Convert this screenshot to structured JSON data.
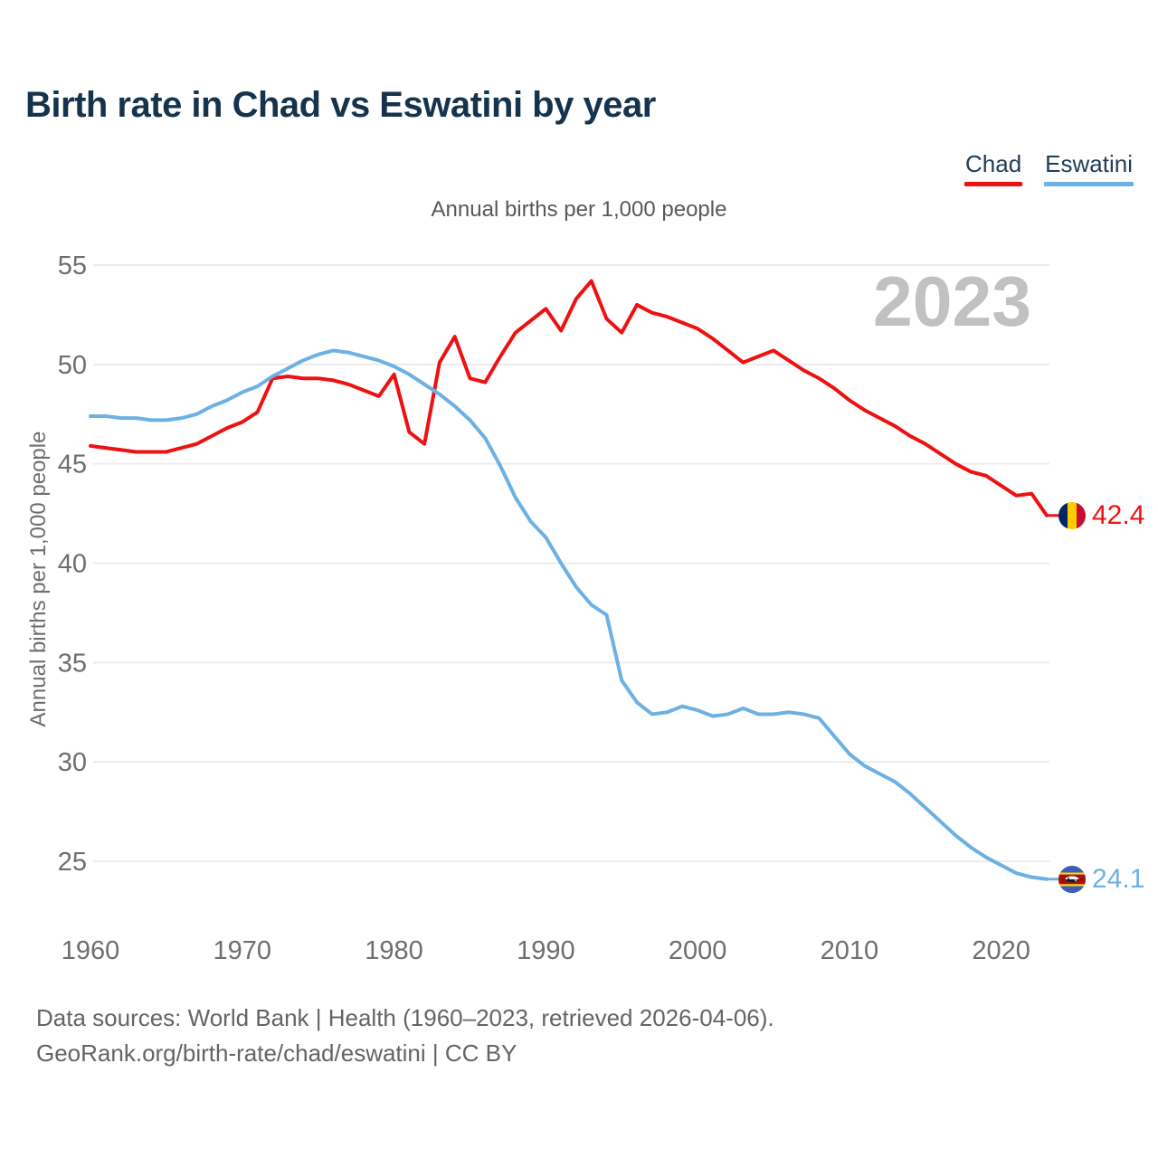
{
  "page": {
    "title": "Birth rate in Chad vs Eswatini by year"
  },
  "legend": {
    "items": [
      {
        "label": "Chad",
        "color": "#ee1111"
      },
      {
        "label": "Eswatini",
        "color": "#6cb0e4"
      }
    ]
  },
  "chart_data": {
    "type": "line",
    "title": "Annual births per 1,000 people",
    "xlabel": "",
    "ylabel": "Annual births per 1,000 people",
    "watermark": "2023",
    "grid": true,
    "legend_position": "top-right",
    "xlim": [
      1960,
      2023
    ],
    "ylim": [
      25,
      55
    ],
    "x_ticks": [
      1960,
      1970,
      1980,
      1990,
      2000,
      2010,
      2020
    ],
    "y_ticks": [
      25,
      30,
      35,
      40,
      45,
      50,
      55
    ],
    "x": [
      1960,
      1961,
      1962,
      1963,
      1964,
      1965,
      1966,
      1967,
      1968,
      1969,
      1970,
      1971,
      1972,
      1973,
      1974,
      1975,
      1976,
      1977,
      1978,
      1979,
      1980,
      1981,
      1982,
      1983,
      1984,
      1985,
      1986,
      1987,
      1988,
      1989,
      1990,
      1991,
      1992,
      1993,
      1994,
      1995,
      1996,
      1997,
      1998,
      1999,
      2000,
      2001,
      2002,
      2003,
      2004,
      2005,
      2006,
      2007,
      2008,
      2009,
      2010,
      2011,
      2012,
      2013,
      2014,
      2015,
      2016,
      2017,
      2018,
      2019,
      2020,
      2021,
      2022,
      2023
    ],
    "series": [
      {
        "name": "Chad",
        "color": "#ee1111",
        "end_label": "42.4",
        "flag": "chad",
        "values": [
          45.9,
          45.8,
          45.7,
          45.6,
          45.6,
          45.6,
          45.8,
          46.0,
          46.4,
          46.8,
          47.1,
          47.6,
          49.3,
          49.4,
          49.3,
          49.3,
          49.2,
          49.0,
          48.7,
          48.4,
          49.5,
          46.6,
          46.0,
          50.1,
          51.4,
          49.3,
          49.1,
          50.4,
          51.6,
          52.2,
          52.8,
          51.7,
          53.3,
          54.2,
          52.3,
          51.6,
          53.0,
          52.6,
          52.4,
          52.1,
          51.8,
          51.3,
          50.7,
          50.1,
          50.4,
          50.7,
          50.2,
          49.7,
          49.3,
          48.8,
          48.2,
          47.7,
          47.3,
          46.9,
          46.4,
          46.0,
          45.5,
          45.0,
          44.6,
          44.4,
          43.9,
          43.4,
          43.5,
          42.4
        ]
      },
      {
        "name": "Eswatini",
        "color": "#6cb0e4",
        "end_label": "24.1",
        "flag": "eswatini",
        "values": [
          47.4,
          47.4,
          47.3,
          47.3,
          47.2,
          47.2,
          47.3,
          47.5,
          47.9,
          48.2,
          48.6,
          48.9,
          49.4,
          49.8,
          50.2,
          50.5,
          50.7,
          50.6,
          50.4,
          50.2,
          49.9,
          49.5,
          49.0,
          48.5,
          47.9,
          47.2,
          46.3,
          44.9,
          43.3,
          42.1,
          41.3,
          40.0,
          38.8,
          37.9,
          37.4,
          34.1,
          33.0,
          32.4,
          32.5,
          32.8,
          32.6,
          32.3,
          32.4,
          32.7,
          32.4,
          32.4,
          32.5,
          32.4,
          32.2,
          31.3,
          30.4,
          29.8,
          29.4,
          29.0,
          28.4,
          27.7,
          27.0,
          26.3,
          25.7,
          25.2,
          24.8,
          24.4,
          24.2,
          24.1
        ]
      }
    ]
  },
  "footer": {
    "line1": "Data sources: World Bank | Health (1960–2023, retrieved 2026-04-06).",
    "line2": "GeoRank.org/birth-rate/chad/eswatini | CC BY"
  }
}
